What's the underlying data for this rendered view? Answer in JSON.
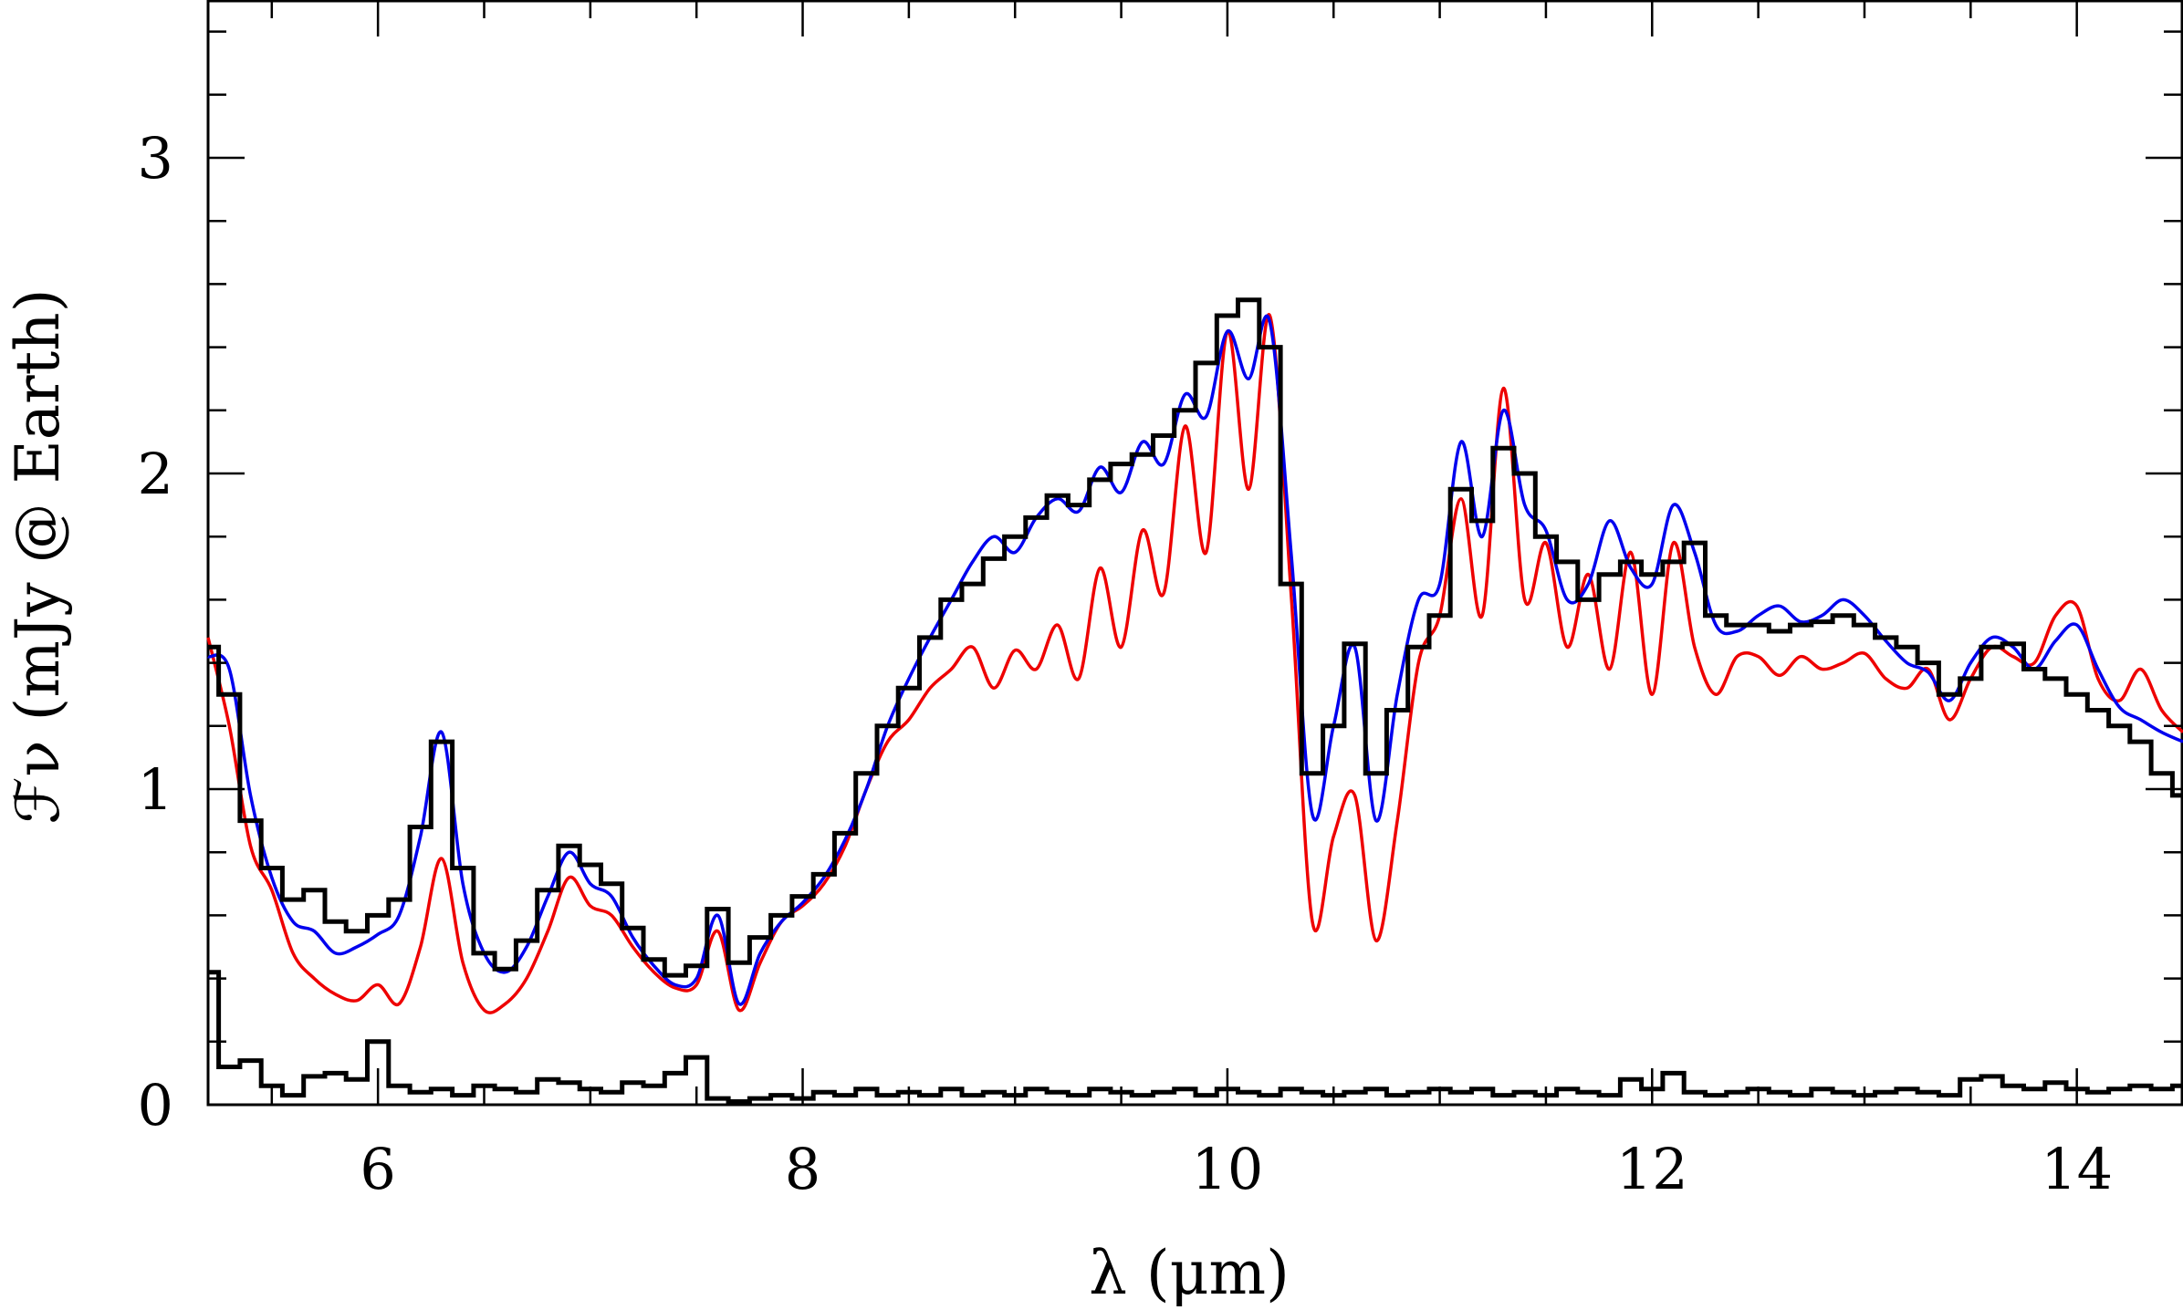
{
  "chart_data": {
    "type": "line",
    "xlabel": "λ (μm)",
    "ylabel": "ℱν (mJy @ Earth)",
    "xlim": [
      5.2,
      14.5
    ],
    "ylim": [
      0,
      3.5
    ],
    "x_ticks": [
      6,
      8,
      10,
      12,
      14
    ],
    "y_ticks": [
      0,
      1,
      2,
      3
    ],
    "colors": {
      "observed": "#000000",
      "model_blue": "#0000ee",
      "model_red": "#ee0000",
      "uncertainty": "#000000"
    },
    "series": [
      {
        "style": "step",
        "color": "#000000",
        "x": [
          5.2,
          5.3,
          5.4,
          5.5,
          5.6,
          5.7,
          5.8,
          5.9,
          6.0,
          6.1,
          6.2,
          6.3,
          6.4,
          6.5,
          6.6,
          6.7,
          6.8,
          6.9,
          7.0,
          7.1,
          7.2,
          7.3,
          7.4,
          7.5,
          7.6,
          7.7,
          7.8,
          7.9,
          8.0,
          8.1,
          8.2,
          8.3,
          8.4,
          8.5,
          8.6,
          8.7,
          8.8,
          8.9,
          9.0,
          9.1,
          9.2,
          9.3,
          9.4,
          9.5,
          9.6,
          9.7,
          9.8,
          9.9,
          10.0,
          10.1,
          10.2,
          10.3,
          10.4,
          10.5,
          10.6,
          10.7,
          10.8,
          10.9,
          11.0,
          11.1,
          11.2,
          11.3,
          11.4,
          11.5,
          11.6,
          11.7,
          11.8,
          11.9,
          12.0,
          12.1,
          12.2,
          12.3,
          12.4,
          12.5,
          12.6,
          12.7,
          12.8,
          12.9,
          13.0,
          13.1,
          13.2,
          13.3,
          13.4,
          13.5,
          13.6,
          13.7,
          13.8,
          13.9,
          14.0,
          14.1,
          14.2,
          14.3,
          14.4,
          14.5
        ],
        "y": [
          1.45,
          1.3,
          0.9,
          0.75,
          0.65,
          0.68,
          0.58,
          0.55,
          0.6,
          0.65,
          0.88,
          1.15,
          0.75,
          0.48,
          0.43,
          0.52,
          0.68,
          0.82,
          0.76,
          0.7,
          0.56,
          0.46,
          0.41,
          0.44,
          0.62,
          0.45,
          0.53,
          0.6,
          0.66,
          0.73,
          0.86,
          1.05,
          1.2,
          1.32,
          1.48,
          1.6,
          1.65,
          1.73,
          1.8,
          1.86,
          1.93,
          1.9,
          1.98,
          2.03,
          2.06,
          2.12,
          2.2,
          2.35,
          2.5,
          2.55,
          2.4,
          1.65,
          1.05,
          1.2,
          1.46,
          1.05,
          1.25,
          1.45,
          1.55,
          1.95,
          1.85,
          2.08,
          2.0,
          1.8,
          1.72,
          1.6,
          1.68,
          1.72,
          1.68,
          1.72,
          1.78,
          1.55,
          1.52,
          1.52,
          1.5,
          1.52,
          1.53,
          1.55,
          1.52,
          1.48,
          1.45,
          1.4,
          1.3,
          1.35,
          1.45,
          1.46,
          1.38,
          1.35,
          1.3,
          1.25,
          1.2,
          1.15,
          1.05,
          0.98
        ]
      },
      {
        "style": "line",
        "color": "#0000ee",
        "x": [
          5.2,
          5.3,
          5.4,
          5.5,
          5.6,
          5.7,
          5.8,
          5.9,
          6.0,
          6.1,
          6.2,
          6.3,
          6.4,
          6.5,
          6.6,
          6.7,
          6.8,
          6.9,
          7.0,
          7.1,
          7.2,
          7.3,
          7.4,
          7.5,
          7.6,
          7.7,
          7.8,
          7.9,
          8.0,
          8.1,
          8.2,
          8.3,
          8.4,
          8.5,
          8.6,
          8.7,
          8.8,
          8.9,
          9.0,
          9.1,
          9.2,
          9.3,
          9.4,
          9.5,
          9.6,
          9.7,
          9.8,
          9.9,
          10.0,
          10.1,
          10.2,
          10.3,
          10.4,
          10.5,
          10.6,
          10.7,
          10.8,
          10.9,
          11.0,
          11.1,
          11.2,
          11.3,
          11.4,
          11.5,
          11.6,
          11.7,
          11.8,
          11.9,
          12.0,
          12.1,
          12.2,
          12.3,
          12.4,
          12.5,
          12.6,
          12.7,
          12.8,
          12.9,
          13.0,
          13.1,
          13.2,
          13.3,
          13.4,
          13.5,
          13.6,
          13.7,
          13.8,
          13.9,
          14.0,
          14.1,
          14.2,
          14.3,
          14.4,
          14.5
        ],
        "y": [
          1.42,
          1.38,
          0.98,
          0.72,
          0.58,
          0.55,
          0.48,
          0.5,
          0.54,
          0.6,
          0.85,
          1.18,
          0.7,
          0.48,
          0.42,
          0.5,
          0.66,
          0.8,
          0.7,
          0.66,
          0.53,
          0.44,
          0.38,
          0.4,
          0.6,
          0.32,
          0.48,
          0.58,
          0.64,
          0.72,
          0.84,
          1.0,
          1.2,
          1.35,
          1.48,
          1.6,
          1.72,
          1.8,
          1.75,
          1.86,
          1.92,
          1.88,
          2.02,
          1.94,
          2.1,
          2.03,
          2.25,
          2.18,
          2.45,
          2.3,
          2.48,
          1.75,
          0.92,
          1.2,
          1.45,
          0.9,
          1.3,
          1.6,
          1.65,
          2.1,
          1.8,
          2.2,
          1.9,
          1.82,
          1.6,
          1.65,
          1.85,
          1.7,
          1.65,
          1.9,
          1.75,
          1.52,
          1.5,
          1.55,
          1.58,
          1.53,
          1.55,
          1.6,
          1.55,
          1.47,
          1.4,
          1.37,
          1.28,
          1.4,
          1.48,
          1.45,
          1.38,
          1.47,
          1.52,
          1.38,
          1.26,
          1.22,
          1.18,
          1.15
        ]
      },
      {
        "style": "line",
        "color": "#ee0000",
        "x": [
          5.2,
          5.3,
          5.4,
          5.5,
          5.6,
          5.7,
          5.8,
          5.9,
          6.0,
          6.1,
          6.2,
          6.3,
          6.4,
          6.5,
          6.6,
          6.7,
          6.8,
          6.9,
          7.0,
          7.1,
          7.2,
          7.3,
          7.4,
          7.5,
          7.6,
          7.7,
          7.8,
          7.9,
          8.0,
          8.1,
          8.2,
          8.3,
          8.4,
          8.5,
          8.6,
          8.7,
          8.8,
          8.9,
          9.0,
          9.1,
          9.2,
          9.3,
          9.4,
          9.5,
          9.6,
          9.7,
          9.8,
          9.9,
          10.0,
          10.1,
          10.2,
          10.3,
          10.4,
          10.5,
          10.6,
          10.7,
          10.8,
          10.9,
          11.0,
          11.1,
          11.2,
          11.3,
          11.4,
          11.5,
          11.6,
          11.7,
          11.8,
          11.9,
          12.0,
          12.1,
          12.2,
          12.3,
          12.4,
          12.5,
          12.6,
          12.7,
          12.8,
          12.9,
          13.0,
          13.1,
          13.2,
          13.3,
          13.4,
          13.5,
          13.6,
          13.7,
          13.8,
          13.9,
          14.0,
          14.1,
          14.2,
          14.3,
          14.4,
          14.5
        ],
        "y": [
          1.48,
          1.2,
          0.82,
          0.68,
          0.48,
          0.4,
          0.35,
          0.33,
          0.38,
          0.32,
          0.5,
          0.78,
          0.45,
          0.3,
          0.32,
          0.4,
          0.55,
          0.72,
          0.63,
          0.6,
          0.5,
          0.42,
          0.37,
          0.38,
          0.55,
          0.3,
          0.45,
          0.58,
          0.63,
          0.7,
          0.82,
          1.0,
          1.15,
          1.22,
          1.32,
          1.38,
          1.45,
          1.32,
          1.44,
          1.38,
          1.52,
          1.35,
          1.7,
          1.45,
          1.82,
          1.62,
          2.15,
          1.75,
          2.45,
          1.95,
          2.5,
          1.62,
          0.58,
          0.85,
          0.98,
          0.52,
          0.9,
          1.4,
          1.55,
          1.92,
          1.55,
          2.27,
          1.6,
          1.78,
          1.45,
          1.68,
          1.38,
          1.75,
          1.3,
          1.78,
          1.45,
          1.3,
          1.42,
          1.42,
          1.36,
          1.42,
          1.38,
          1.4,
          1.43,
          1.35,
          1.32,
          1.38,
          1.22,
          1.35,
          1.45,
          1.42,
          1.4,
          1.55,
          1.58,
          1.35,
          1.28,
          1.38,
          1.25,
          1.18
        ]
      },
      {
        "style": "step",
        "color": "#000000",
        "x": [
          5.2,
          5.3,
          5.4,
          5.5,
          5.6,
          5.7,
          5.8,
          5.9,
          6.0,
          6.1,
          6.2,
          6.3,
          6.4,
          6.5,
          6.6,
          6.7,
          6.8,
          6.9,
          7.0,
          7.1,
          7.2,
          7.3,
          7.4,
          7.5,
          7.6,
          7.7,
          7.8,
          7.9,
          8.0,
          8.1,
          8.2,
          8.3,
          8.4,
          8.5,
          8.6,
          8.7,
          8.8,
          8.9,
          9.0,
          9.1,
          9.2,
          9.3,
          9.4,
          9.5,
          9.6,
          9.7,
          9.8,
          9.9,
          10.0,
          10.1,
          10.2,
          10.3,
          10.4,
          10.5,
          10.6,
          10.7,
          10.8,
          10.9,
          11.0,
          11.1,
          11.2,
          11.3,
          11.4,
          11.5,
          11.6,
          11.7,
          11.8,
          11.9,
          12.0,
          12.1,
          12.2,
          12.3,
          12.4,
          12.5,
          12.6,
          12.7,
          12.8,
          12.9,
          13.0,
          13.1,
          13.2,
          13.3,
          13.4,
          13.5,
          13.6,
          13.7,
          13.8,
          13.9,
          14.0,
          14.1,
          14.2,
          14.3,
          14.4,
          14.5
        ],
        "y": [
          0.42,
          0.12,
          0.14,
          0.06,
          0.03,
          0.09,
          0.1,
          0.08,
          0.2,
          0.06,
          0.04,
          0.05,
          0.03,
          0.06,
          0.05,
          0.04,
          0.08,
          0.07,
          0.05,
          0.04,
          0.07,
          0.06,
          0.1,
          0.15,
          0.02,
          0.01,
          0.02,
          0.03,
          0.02,
          0.04,
          0.03,
          0.05,
          0.03,
          0.04,
          0.03,
          0.05,
          0.03,
          0.04,
          0.03,
          0.05,
          0.04,
          0.03,
          0.05,
          0.04,
          0.03,
          0.04,
          0.05,
          0.03,
          0.05,
          0.04,
          0.03,
          0.05,
          0.04,
          0.03,
          0.04,
          0.05,
          0.03,
          0.04,
          0.05,
          0.04,
          0.05,
          0.03,
          0.04,
          0.03,
          0.05,
          0.04,
          0.03,
          0.08,
          0.05,
          0.1,
          0.04,
          0.03,
          0.04,
          0.05,
          0.04,
          0.03,
          0.05,
          0.04,
          0.03,
          0.04,
          0.05,
          0.04,
          0.03,
          0.08,
          0.09,
          0.06,
          0.05,
          0.07,
          0.05,
          0.04,
          0.05,
          0.06,
          0.05,
          0.06
        ]
      }
    ]
  }
}
